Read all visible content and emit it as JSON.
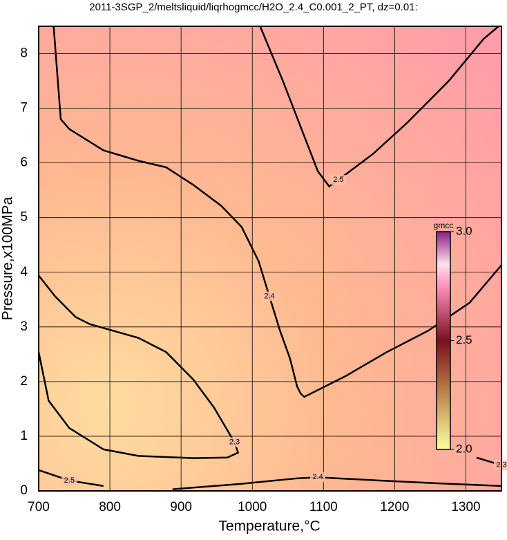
{
  "chart_data": {
    "type": "contour",
    "title": "2011-3SGP_2/meltsliquid/liqrhogmcc/H2O_2.4_C0.001_2_PT, dz=0.01:",
    "x_label": "Temperature,°C",
    "y_label": "Pressure,x100MPa",
    "xlim": [
      700,
      1350
    ],
    "ylim": [
      0,
      8.5
    ],
    "xticks": [
      700,
      800,
      900,
      1000,
      1100,
      1200,
      1300
    ],
    "yticks": [
      0,
      1,
      2,
      3,
      4,
      5,
      6,
      7,
      8
    ],
    "grid": true,
    "line_color": "#000000",
    "colorbar": {
      "label": "gmcc",
      "lim": [
        2,
        3
      ],
      "ticks": [
        {
          "value": 2,
          "label": "2.0"
        },
        2.5,
        {
          "value": 3,
          "label": "3.0"
        }
      ]
    },
    "contours": [
      {
        "level": 2.4,
        "x": [
          721,
          731,
          743,
          791,
          840,
          879,
          917,
          956,
          985,
          1009,
          1024,
          1039,
          1053,
          1063,
          1068,
          1073,
          1131,
          1189,
          1247,
          1305,
          1350
        ],
        "y": [
          8.5,
          6.8,
          6.62,
          6.23,
          6.04,
          5.92,
          5.6,
          5.22,
          4.83,
          4.2,
          3.56,
          2.93,
          2.42,
          1.91,
          1.78,
          1.72,
          2.1,
          2.54,
          2.93,
          3.44,
          4.13
        ]
      },
      {
        "level": 2.5,
        "x": [
          1011,
          1043,
          1073,
          1092,
          1108,
          1121,
          1170,
          1218,
          1276,
          1325,
          1346
        ],
        "y": [
          8.5,
          7.5,
          6.49,
          5.85,
          5.57,
          5.69,
          6.17,
          6.74,
          7.5,
          8.27,
          8.5
        ]
      },
      {
        "level": 2.3,
        "x": [
          700,
          723,
          752,
          772,
          840,
          879,
          917,
          946,
          975,
          980,
          965,
          917,
          840,
          791,
          743,
          714,
          700
        ],
        "y": [
          3.94,
          3.56,
          3.18,
          3.05,
          2.8,
          2.54,
          2.04,
          1.53,
          0.89,
          0.7,
          0.61,
          0.6,
          0.64,
          0.76,
          1.15,
          1.65,
          2.54
        ]
      },
      {
        "level": 2.4,
        "x": [
          888,
          985,
          1063,
          1092,
          1179,
          1276,
          1350
        ],
        "y": [
          0.03,
          0.13,
          0.23,
          0.25,
          0.19,
          0.13,
          0.09
        ]
      },
      {
        "level": 2.3,
        "x": [
          1315,
          1350
        ],
        "y": [
          0.61,
          0.47
        ]
      },
      {
        "level": 2.5,
        "x": [
          700,
          743,
          791
        ],
        "y": [
          0.38,
          0.19,
          0.09
        ]
      }
    ]
  }
}
